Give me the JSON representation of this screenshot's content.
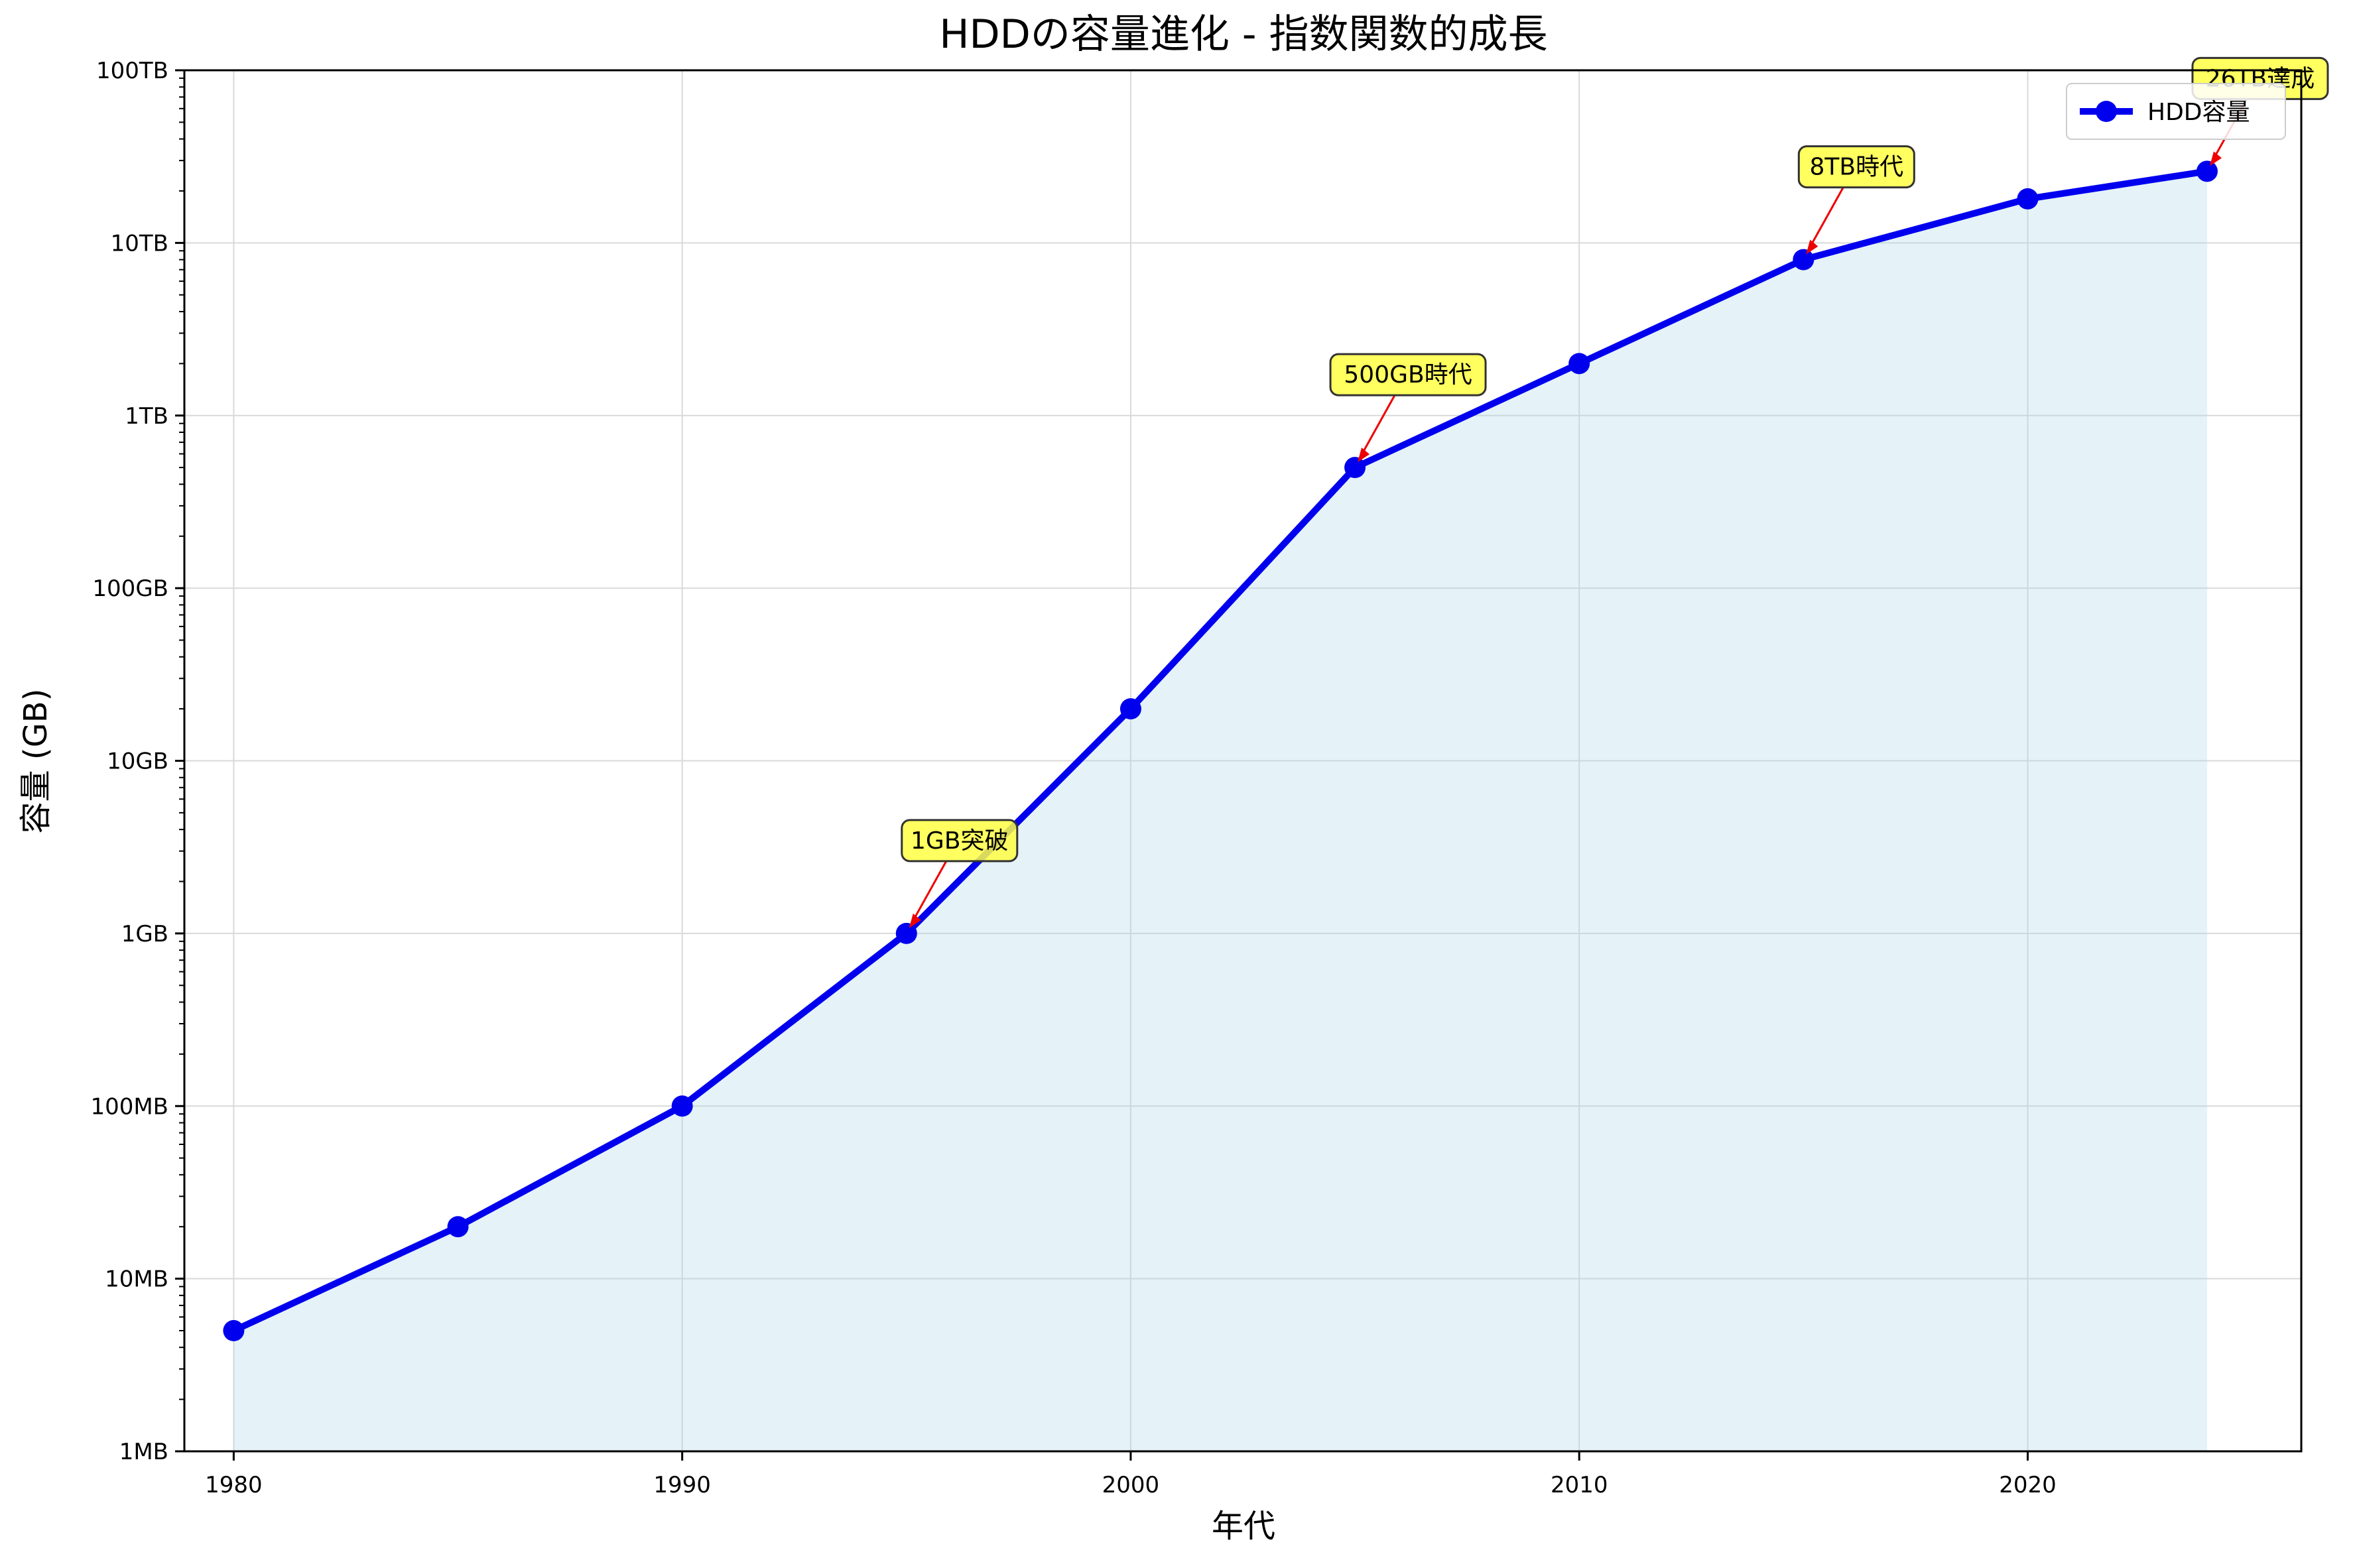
{
  "chart_data": {
    "type": "line",
    "title": "HDDの容量進化 - 指数関数的成長",
    "xlabel": "年代",
    "ylabel": "容量 (GB)",
    "y_scale": "log",
    "xlim": [
      1978.9,
      2026.1
    ],
    "ylim": [
      0.001,
      100000
    ],
    "x_ticks": [
      1980,
      1990,
      2000,
      2010,
      2020
    ],
    "x_tick_labels": [
      "1980",
      "1990",
      "2000",
      "2010",
      "2020"
    ],
    "y_ticks": [
      0.001,
      0.01,
      0.1,
      1,
      10,
      100,
      1000,
      10000,
      100000
    ],
    "y_tick_labels": [
      "1MB",
      "10MB",
      "100MB",
      "1GB",
      "10GB",
      "100GB",
      "1TB",
      "10TB",
      "100TB"
    ],
    "grid": true,
    "fill_under_line": true,
    "legend_position": "upper right",
    "series": [
      {
        "name": "HDD容量",
        "x": [
          1980,
          1985,
          1990,
          1995,
          2000,
          2005,
          2010,
          2015,
          2020,
          2024
        ],
        "y": [
          0.005,
          0.02,
          0.1,
          1,
          20,
          500,
          2000,
          8000,
          18000,
          26000
        ]
      }
    ],
    "annotations": [
      {
        "text": "1GB突破",
        "x": 1995,
        "y": 1
      },
      {
        "text": "500GB時代",
        "x": 2005,
        "y": 500
      },
      {
        "text": "8TB時代",
        "x": 2015,
        "y": 8000
      },
      {
        "text": "26TB達成",
        "x": 2024,
        "y": 26000
      }
    ],
    "colors": {
      "line": "#0000ee",
      "marker": "#0000ee",
      "fill": "#add8e6",
      "annotation_box": "#ffff44",
      "annotation_arrow": "#ee0000",
      "grid": "#d9d9d9"
    }
  }
}
